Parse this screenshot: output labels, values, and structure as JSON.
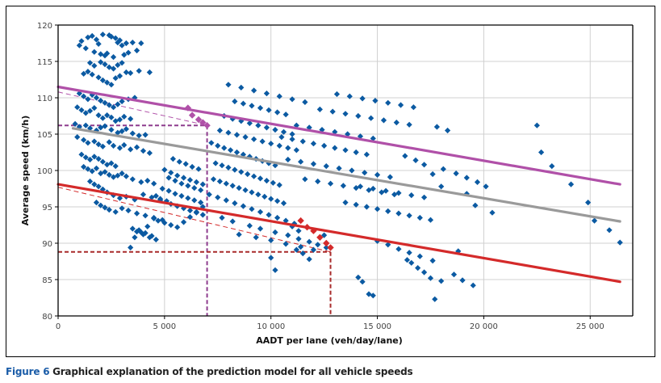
{
  "caption": {
    "figure_number": "Figure 6",
    "text": "Graphical explanation of the prediction model for all vehicle speeds"
  },
  "colors": {
    "points": "#0b5aa2",
    "upper_line": "#b050a8",
    "mean_line": "#9a9a9a",
    "lower_line": "#d42a2a",
    "upper_guide": "#8e3c8e",
    "lower_guide": "#a82a2a",
    "grid": "#d0d0d0",
    "caption_accent": "#1a5ca8"
  },
  "chart_data": {
    "type": "scatter",
    "title": "",
    "xlabel": "AADT per lane (veh/day/lane)",
    "ylabel": "Average speed (km/h)",
    "xlim": [
      0,
      27000
    ],
    "ylim": [
      80,
      120
    ],
    "grid": true,
    "x_ticks": [
      0,
      5000,
      10000,
      15000,
      20000,
      25000
    ],
    "x_tick_labels": [
      "0",
      "5 000",
      "10 000",
      "15 000",
      "20 000",
      "25 000"
    ],
    "y_ticks": [
      80,
      85,
      90,
      95,
      100,
      105,
      110,
      115,
      120
    ],
    "y_tick_labels": [
      "80",
      "85",
      "90",
      "95",
      "100",
      "105",
      "110",
      "115",
      "120"
    ],
    "legend": "none",
    "lines": [
      {
        "name": "upper-limit-line",
        "x": [
          0,
          26400
        ],
        "y": [
          111.5,
          98.1
        ],
        "style": "solid",
        "color_key": "upper_line"
      },
      {
        "name": "mean-line",
        "x": [
          700,
          26400
        ],
        "y": [
          105.8,
          93.0
        ],
        "style": "solid",
        "color_key": "mean_line"
      },
      {
        "name": "lower-limit-line",
        "x": [
          0,
          26400
        ],
        "y": [
          98.1,
          84.7
        ],
        "style": "solid",
        "color_key": "lower_line"
      }
    ],
    "guides": [
      {
        "name": "upper-dashed-slope",
        "x": [
          0,
          7000
        ],
        "y": [
          110.8,
          106.2
        ],
        "color_key": "upper_line",
        "style": "thin-dashed"
      },
      {
        "name": "upper-guide-horizontal",
        "x": [
          0,
          7000
        ],
        "y": [
          106.2,
          106.2
        ],
        "color_key": "upper_guide",
        "style": "dashed"
      },
      {
        "name": "upper-guide-vertical",
        "x": [
          7000,
          7000
        ],
        "y": [
          106.2,
          80
        ],
        "color_key": "upper_guide",
        "style": "dashed"
      },
      {
        "name": "lower-dashed-slope",
        "x": [
          0,
          12800
        ],
        "y": [
          97.7,
          88.8
        ],
        "color_key": "lower_line",
        "style": "thin-dashed"
      },
      {
        "name": "lower-guide-horizontal",
        "x": [
          0,
          12800
        ],
        "y": [
          88.8,
          88.8
        ],
        "color_key": "lower_guide",
        "style": "dashed"
      },
      {
        "name": "lower-guide-vertical",
        "x": [
          12800,
          12800
        ],
        "y": [
          88.8,
          80
        ],
        "color_key": "lower_guide",
        "style": "dashed"
      }
    ],
    "highlight_points": [
      {
        "series": "upper",
        "x": [
          6100,
          6300,
          6600,
          6800,
          7000
        ],
        "y": [
          108.6,
          107.6,
          107.0,
          106.6,
          106.2
        ]
      },
      {
        "series": "lower",
        "x": [
          11400,
          11700,
          12000,
          12300,
          12600,
          12800
        ],
        "y": [
          93.1,
          92.2,
          91.7,
          90.8,
          90.0,
          89.4
        ]
      }
    ],
    "series": [
      {
        "name": "observations",
        "x": [
          1100,
          1400,
          1600,
          1800,
          1900,
          2100,
          2400,
          2500,
          2700,
          2800,
          2900,
          3000,
          3200,
          3500,
          3900,
          1000,
          1300,
          1700,
          2000,
          2200,
          2300,
          2600,
          3100,
          3300,
          3700,
          1500,
          1700,
          2000,
          2200,
          2400,
          2600,
          2800,
          3000,
          1200,
          1400,
          1600,
          1900,
          2100,
          2300,
          2500,
          2700,
          2900,
          3200,
          3400,
          3800,
          4300,
          1000,
          1200,
          1400,
          1600,
          1800,
          2000,
          2200,
          2400,
          2600,
          2800,
          3000,
          3300,
          3600,
          900,
          1100,
          1300,
          1500,
          1700,
          1900,
          2100,
          2300,
          2500,
          2700,
          2900,
          3100,
          3400,
          800,
          1000,
          1300,
          1500,
          1800,
          2000,
          2200,
          2500,
          2800,
          3000,
          3200,
          3500,
          3800,
          4100,
          900,
          1200,
          1400,
          1700,
          1900,
          2100,
          2400,
          2600,
          2900,
          3100,
          3400,
          3700,
          4000,
          4300,
          1100,
          1300,
          1500,
          1700,
          1900,
          2100,
          2300,
          2500,
          2700,
          1200,
          1400,
          1600,
          1800,
          2000,
          2200,
          2400,
          2600,
          2800,
          3000,
          3200,
          3500,
          3900,
          4200,
          4500,
          1500,
          1700,
          1900,
          2100,
          2300,
          2600,
          2900,
          3200,
          3600,
          4000,
          4400,
          4800,
          1800,
          2000,
          2200,
          2400,
          2700,
          3000,
          3300,
          3700,
          4100,
          4500,
          4900,
          3500,
          3700,
          4000,
          4300,
          4600,
          3800,
          4100,
          4400,
          3400,
          3600,
          3900,
          4200,
          4500,
          4600,
          4800,
          5100,
          5300,
          5600,
          5900,
          6200,
          6500,
          6800,
          4900,
          5200,
          5500,
          5800,
          6100,
          6400,
          6700,
          4700,
          5000,
          5300,
          5600,
          5900,
          6200,
          6500,
          6800,
          5200,
          5500,
          5800,
          6100,
          6400,
          6700,
          5000,
          5300,
          5600,
          5900,
          6200,
          6500,
          6800,
          5400,
          5700,
          6000,
          6300,
          6600,
          7200,
          7500,
          7800,
          8100,
          8400,
          8700,
          9000,
          9300,
          9600,
          9900,
          10200,
          7400,
          7700,
          8000,
          8300,
          8600,
          8900,
          9200,
          9500,
          9800,
          10100,
          10400,
          7300,
          7600,
          7900,
          8200,
          8500,
          8800,
          9100,
          9400,
          9700,
          10000,
          10300,
          10600,
          7100,
          7500,
          7900,
          8300,
          8700,
          9100,
          9500,
          9900,
          10300,
          10700,
          11100,
          7600,
          8000,
          8400,
          8800,
          9200,
          9600,
          10000,
          10400,
          10800,
          11200,
          7800,
          8200,
          8600,
          9000,
          9400,
          9800,
          10200,
          10600,
          11000,
          8300,
          8700,
          9100,
          9500,
          9900,
          10300,
          10700,
          8000,
          8600,
          9200,
          9800,
          10400,
          11000,
          11600,
          7700,
          8200,
          9000,
          9500,
          10200,
          10800,
          11300,
          11800,
          12200,
          12600,
          8500,
          9300,
          10000,
          10700,
          11400,
          12000,
          10500,
          11000,
          11500,
          12000,
          12500,
          13000,
          13500,
          14000,
          14500,
          11200,
          11800,
          12400,
          13000,
          13600,
          14200,
          14800,
          10800,
          11400,
          12000,
          12600,
          13200,
          13800,
          14400,
          15000,
          15600,
          11600,
          12200,
          12800,
          13400,
          14000,
          14600,
          15200,
          15800,
          12300,
          12900,
          13500,
          14100,
          14700,
          15300,
          15900,
          16500,
          13100,
          13700,
          14300,
          14900,
          15500,
          16100,
          16700,
          13500,
          14000,
          14500,
          15000,
          15500,
          16000,
          16500,
          17000,
          17500,
          14200,
          14800,
          15400,
          16000,
          16600,
          17200,
          10000,
          10200,
          11200,
          11500,
          11800,
          14100,
          14300,
          14600,
          14800,
          16400,
          16600,
          16900,
          17200,
          17500,
          17700,
          11000,
          11300,
          12500,
          15000,
          15500,
          16000,
          16500,
          17000,
          17600,
          18000,
          18600,
          19000,
          19500,
          16300,
          16800,
          17200,
          18100,
          18700,
          19200,
          19700,
          20100,
          17800,
          18300,
          22500,
          22700,
          23200,
          24100,
          24900,
          25200,
          25900,
          26400,
          20400,
          19600,
          19200,
          18000,
          17600,
          18800
        ],
        "y": [
          117.8,
          118.3,
          118.5,
          118.0,
          117.4,
          118.7,
          118.6,
          118.4,
          118.2,
          117.6,
          117.9,
          117.2,
          117.5,
          117.6,
          117.5,
          117.2,
          116.8,
          116.3,
          116.0,
          115.8,
          116.1,
          115.6,
          115.9,
          116.2,
          116.5,
          114.8,
          114.4,
          114.9,
          114.6,
          114.2,
          114.0,
          114.5,
          114.8,
          113.3,
          113.6,
          113.2,
          112.8,
          112.4,
          112.1,
          111.8,
          112.7,
          113.0,
          113.5,
          113.4,
          113.7,
          113.5,
          110.6,
          110.2,
          109.8,
          110.4,
          110.0,
          109.6,
          109.3,
          109.0,
          108.7,
          109.1,
          109.5,
          109.8,
          110.0,
          108.7,
          108.3,
          107.9,
          108.2,
          108.6,
          107.6,
          107.2,
          107.6,
          107.3,
          106.8,
          107.0,
          107.4,
          107.1,
          106.4,
          106.0,
          106.2,
          105.8,
          105.5,
          105.9,
          106.1,
          105.6,
          105.2,
          105.4,
          105.7,
          105.1,
          104.8,
          104.9,
          104.6,
          104.2,
          103.8,
          104.0,
          103.6,
          103.3,
          103.9,
          103.4,
          103.1,
          103.5,
          102.9,
          103.2,
          102.7,
          102.4,
          102.2,
          101.8,
          101.5,
          101.9,
          101.6,
          101.2,
          100.8,
          101.0,
          100.6,
          100.5,
          100.2,
          99.9,
          100.3,
          99.6,
          99.8,
          99.4,
          99.1,
          99.3,
          99.6,
          99.2,
          98.8,
          98.4,
          98.6,
          98.2,
          98.5,
          98.1,
          97.8,
          97.4,
          97.0,
          96.6,
          96.2,
          96.4,
          96.0,
          96.7,
          96.3,
          95.9,
          95.6,
          95.2,
          94.9,
          94.6,
          94.3,
          94.8,
          94.5,
          94.1,
          93.8,
          93.5,
          93.2,
          92.0,
          91.6,
          91.2,
          90.8,
          90.5,
          91.8,
          91.4,
          91.0,
          89.4,
          90.8,
          91.5,
          92.3,
          93.4,
          96.5,
          96.1,
          95.8,
          95.4,
          95.1,
          94.8,
          94.5,
          94.2,
          93.9,
          97.5,
          97.2,
          96.8,
          96.5,
          96.2,
          95.9,
          95.6,
          93.1,
          92.8,
          92.5,
          92.2,
          92.9,
          93.6,
          94.3,
          95.0,
          99.0,
          98.6,
          98.2,
          97.9,
          97.6,
          97.3,
          100.1,
          99.7,
          99.3,
          99.0,
          98.7,
          98.4,
          98.1,
          101.6,
          101.2,
          100.9,
          100.5,
          100.2,
          103.8,
          103.4,
          103.1,
          102.8,
          102.5,
          102.2,
          101.9,
          101.6,
          101.3,
          101.0,
          100.7,
          101.0,
          100.7,
          100.4,
          100.1,
          99.8,
          99.5,
          99.2,
          98.9,
          98.6,
          98.3,
          98.0,
          98.8,
          98.5,
          98.2,
          97.9,
          97.6,
          97.3,
          97.0,
          96.7,
          96.4,
          96.1,
          95.8,
          95.5,
          96.7,
          96.3,
          95.9,
          95.5,
          95.1,
          94.7,
          94.3,
          93.9,
          93.5,
          93.1,
          92.7,
          105.5,
          105.2,
          104.9,
          104.6,
          104.3,
          104.0,
          103.7,
          103.4,
          103.1,
          102.8,
          107.5,
          107.1,
          106.8,
          106.5,
          106.2,
          105.9,
          105.6,
          105.3,
          105.0,
          109.5,
          109.2,
          108.9,
          108.6,
          108.3,
          108.0,
          107.7,
          111.8,
          111.4,
          111.0,
          110.6,
          110.2,
          109.8,
          109.4,
          93.5,
          93.0,
          92.4,
          92.0,
          91.5,
          91.1,
          90.6,
          90.2,
          89.8,
          89.4,
          91.2,
          90.8,
          90.4,
          89.9,
          89.5,
          89.1,
          104.6,
          104.3,
          104.0,
          103.7,
          103.4,
          103.1,
          102.8,
          102.5,
          102.2,
          106.2,
          105.9,
          105.6,
          105.3,
          105.0,
          104.7,
          104.4,
          101.5,
          101.2,
          100.9,
          100.6,
          100.3,
          100.0,
          99.7,
          99.4,
          99.1,
          98.8,
          98.5,
          98.2,
          97.9,
          97.6,
          97.3,
          97.0,
          96.7,
          108.4,
          108.1,
          107.8,
          107.5,
          107.2,
          106.9,
          106.6,
          106.3,
          110.5,
          110.2,
          109.9,
          109.6,
          109.3,
          109.0,
          108.7,
          95.6,
          95.3,
          95.0,
          94.7,
          94.4,
          94.1,
          93.8,
          93.5,
          93.2,
          97.8,
          97.5,
          97.2,
          96.9,
          96.6,
          96.3,
          88.0,
          86.3,
          89.1,
          88.6,
          87.8,
          85.3,
          84.7,
          83.0,
          82.8,
          87.7,
          87.3,
          86.6,
          86.0,
          85.2,
          82.3,
          92.3,
          91.7,
          91.1,
          90.3,
          89.8,
          89.2,
          88.7,
          88.2,
          87.6,
          84.8,
          85.7,
          84.9,
          84.2,
          102.0,
          101.4,
          100.8,
          100.2,
          99.6,
          99.0,
          98.4,
          97.8,
          106.0,
          105.5,
          106.2,
          102.5,
          100.6,
          98.1,
          95.6,
          93.1,
          91.8,
          90.1,
          94.2,
          95.2,
          96.8,
          97.8,
          99.5,
          88.9
        ]
      }
    ]
  }
}
